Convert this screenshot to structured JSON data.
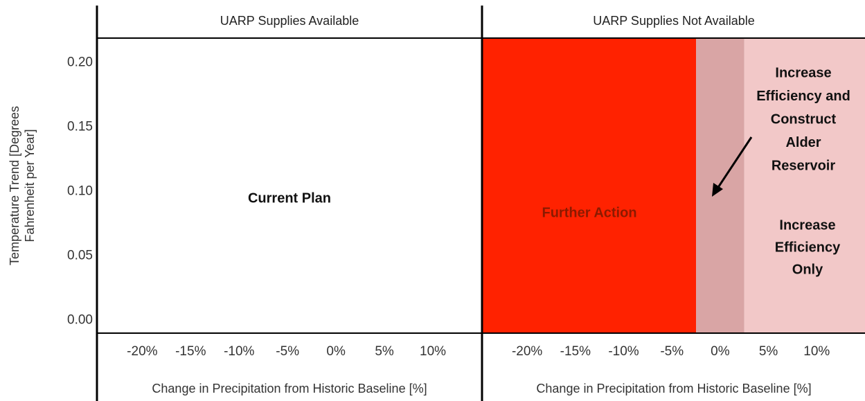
{
  "chart_data": {
    "type": "region",
    "ylabel": [
      "Temperature Trend [Degrees",
      "Fahrenheit per Year]"
    ],
    "ylim": [
      -0.01,
      0.219
    ],
    "yticks": [
      {
        "value": 0,
        "label": "0.00"
      },
      {
        "value": 0.05,
        "label": "0.05"
      },
      {
        "value": 0.1,
        "label": "0.10"
      },
      {
        "value": 0.15,
        "label": "0.15"
      },
      {
        "value": 0.2,
        "label": "0.20"
      }
    ],
    "xlim": [
      -24.6,
      15
    ],
    "xticks": [
      {
        "value": -20,
        "label": "-20%"
      },
      {
        "value": -15,
        "label": "-15%"
      },
      {
        "value": -10,
        "label": "-10%"
      },
      {
        "value": -5,
        "label": "-5%"
      },
      {
        "value": 0,
        "label": "0%"
      },
      {
        "value": 5,
        "label": "5%"
      },
      {
        "value": 10,
        "label": "10%"
      }
    ],
    "panels": [
      {
        "title": "UARP Supplies Available",
        "xlabel": "Change in Precipitation from Historic Baseline [%]",
        "regions": [
          {
            "label": [
              "Current Plan"
            ],
            "color": "#ffffff",
            "label_color": "#111111",
            "x": [
              -24.6,
              15
            ]
          }
        ]
      },
      {
        "title": "UARP Supplies Not Available",
        "xlabel": "Change in Precipitation from Historic Baseline [%]",
        "regions": [
          {
            "label": [
              "Further Action"
            ],
            "color": "#ff2200",
            "label_color": "#8b1a00",
            "x": [
              -24.6,
              -2.5
            ]
          },
          {
            "label": [
              "Increase",
              "Efficiency and",
              "Construct",
              "Alder",
              "Reservoir"
            ],
            "color": "#d9a5a5",
            "label_color": "#111111",
            "x": [
              -2.5,
              2.5
            ]
          },
          {
            "label": [
              "Increase",
              "Efficiency",
              "Only"
            ],
            "color": "#f2c8c8",
            "label_color": "#111111",
            "x": [
              2.5,
              15
            ]
          }
        ]
      }
    ]
  }
}
